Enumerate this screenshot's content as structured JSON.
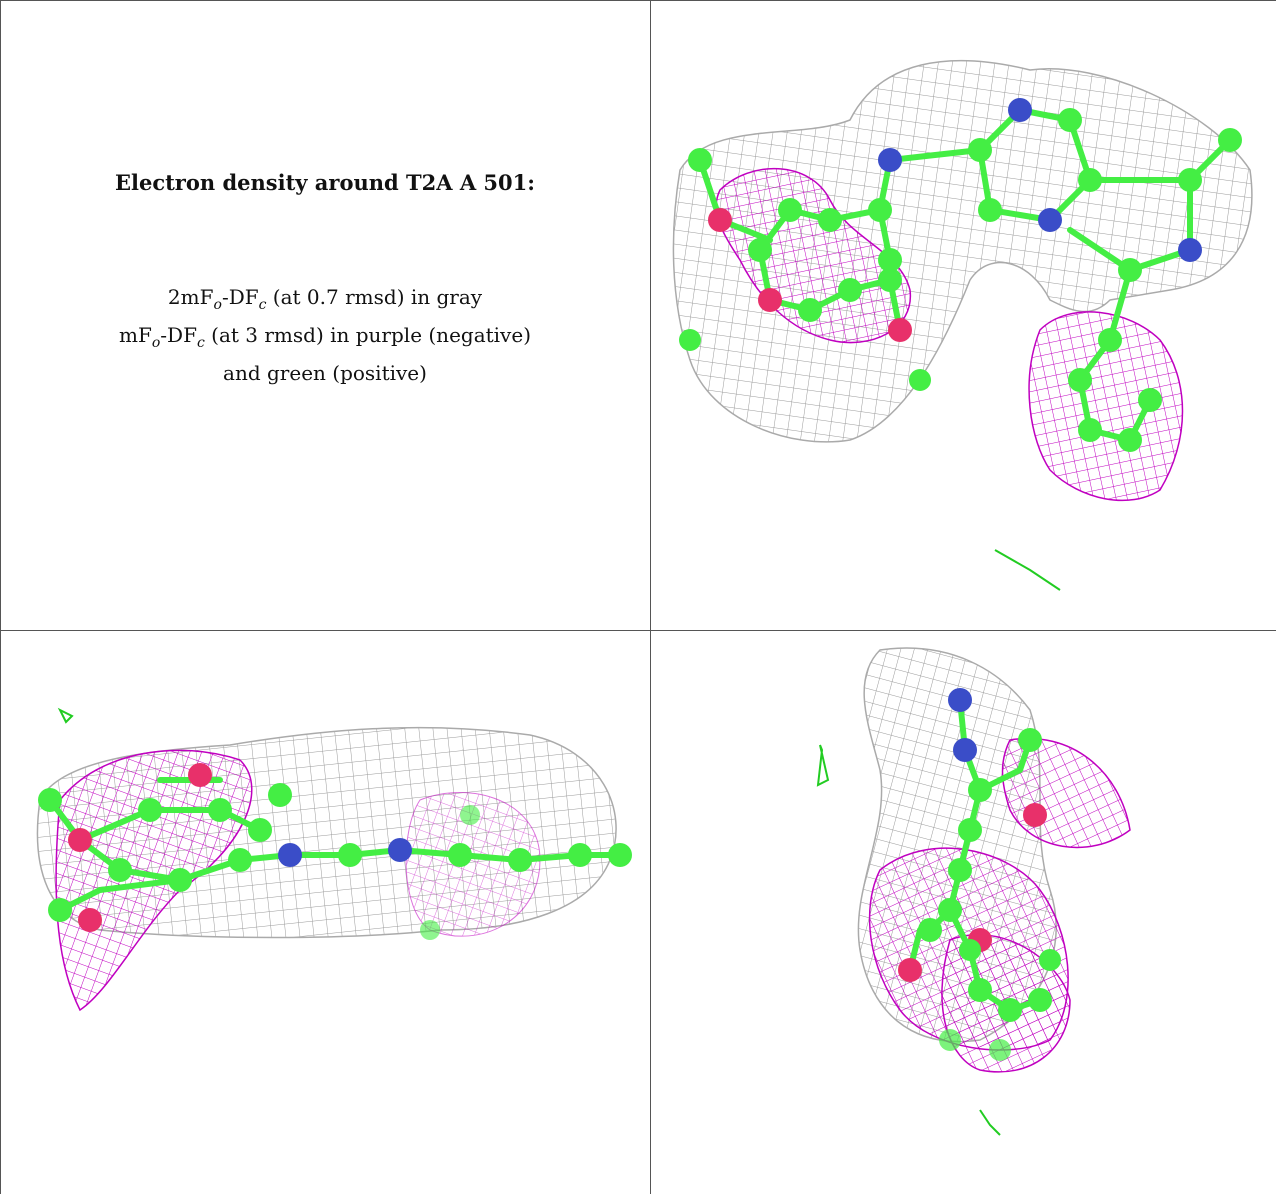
{
  "panel_text": {
    "title": "Electron density around T2A A 501:",
    "line1_a": "2mF",
    "line1_sub1": "o",
    "line1_b": "-DF",
    "line1_sub2": "c",
    "line1_c": " (at 0.7 rmsd) in gray",
    "line2_a": "mF",
    "line2_sub1": "o",
    "line2_b": "-DF",
    "line2_sub2": "c",
    "line2_c": " (at 3 rmsd) in purple (negative)",
    "line3": "and green (positive)"
  },
  "colors": {
    "mesh_2fofc": "#9a9a9a",
    "mesh_negative": "#c000c0",
    "mesh_positive": "#22cc22",
    "carbon": "#44ee44",
    "nitrogen": "#3a4dc8",
    "oxygen": "#e8306a",
    "border": "#555555"
  }
}
